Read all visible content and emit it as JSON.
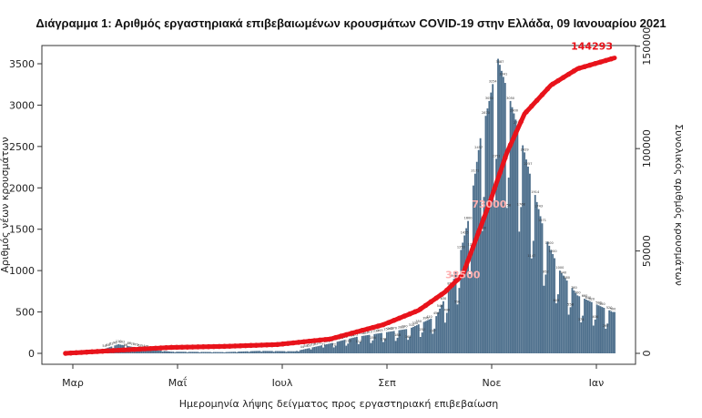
{
  "chart_data": {
    "type": "bar",
    "title": "Διάγραμμα 1: Αριθμός εργαστηριακά επιβεβαιωμένων κρουσμάτων COVID-19 στην Ελλάδα, 09 Ιανουαρίου 2021",
    "xlabel": "Ημερομηνία λήψης δείγματος προς εργαστηριακή επιβεβαίωση",
    "ylabel_left": "Αριθμός νέων κρουσμάτων",
    "ylabel_right": "Συνολικός αριθμός κρουσμάτων",
    "x_ticks": [
      "Μαρ",
      "Μαΐ",
      "Ιουλ",
      "Σεπ",
      "Νοε",
      "Ιαν"
    ],
    "y_left_ticks": [
      "0",
      "500",
      "1000",
      "1500",
      "2000",
      "2500",
      "3000",
      "3500"
    ],
    "y_right_ticks": [
      "0",
      "50000",
      "100000",
      "150000"
    ],
    "ylim_left": [
      0,
      3650
    ],
    "ylim_right": [
      0,
      150000
    ],
    "grid": false,
    "bar_color": "#4d6f8c",
    "line_color": "#e8131b",
    "series": [
      {
        "name": "Αριθμός νέων κρουσμάτων",
        "kind": "bar",
        "anchors": [
          [
            0,
            5
          ],
          [
            20,
            40
          ],
          [
            30,
            110
          ],
          [
            45,
            50
          ],
          [
            60,
            20
          ],
          [
            90,
            15
          ],
          [
            110,
            30
          ],
          [
            130,
            25
          ],
          [
            150,
            120
          ],
          [
            165,
            200
          ],
          [
            180,
            250
          ],
          [
            195,
            300
          ],
          [
            210,
            450
          ],
          [
            220,
            900
          ],
          [
            228,
            1600
          ],
          [
            235,
            2600
          ],
          [
            240,
            3050
          ],
          [
            245,
            3560
          ],
          [
            252,
            3050
          ],
          [
            258,
            2600
          ],
          [
            265,
            2000
          ],
          [
            272,
            1400
          ],
          [
            280,
            1000
          ],
          [
            290,
            700
          ],
          [
            300,
            600
          ],
          [
            310,
            500
          ]
        ]
      },
      {
        "name": "Συνολικός αριθμός κρουσμάτων",
        "kind": "line",
        "anchors": [
          [
            0,
            0
          ],
          [
            30,
            1500
          ],
          [
            60,
            2900
          ],
          [
            90,
            3400
          ],
          [
            120,
            4300
          ],
          [
            150,
            7000
          ],
          [
            180,
            14000
          ],
          [
            200,
            21000
          ],
          [
            215,
            30000
          ],
          [
            225,
            38500
          ],
          [
            240,
            73000
          ],
          [
            250,
            98000
          ],
          [
            260,
            117000
          ],
          [
            275,
            131000
          ],
          [
            290,
            139000
          ],
          [
            311,
            144293
          ]
        ]
      }
    ],
    "annotations": [
      "144293",
      "73000",
      "38500"
    ]
  }
}
